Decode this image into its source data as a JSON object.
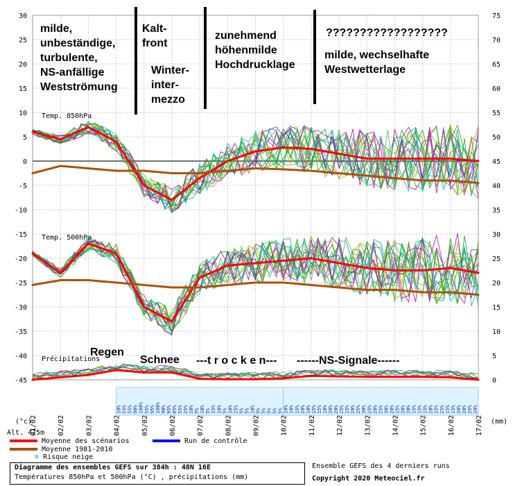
{
  "chart_data": {
    "type": "line",
    "x_tick_labels": [
      "01/02",
      "02/02",
      "03/02",
      "04/02",
      "05/02",
      "06/02",
      "07/02",
      "08/02",
      "09/02",
      "10/02",
      "11/02",
      "12/02",
      "13/02",
      "14/02",
      "15/02",
      "16/02",
      "17/02"
    ],
    "left_axis_ticks": [
      30,
      25,
      20,
      15,
      10,
      5,
      0,
      -5,
      -10,
      -15,
      -20,
      -25,
      -30,
      -35,
      -40,
      -45
    ],
    "right_axis_ticks": [
      75,
      70,
      65,
      60,
      55,
      50,
      45,
      40,
      35,
      30,
      25,
      20,
      15,
      10,
      5,
      0
    ],
    "left_unit": "(°c)",
    "right_unit": "(mm)",
    "altitude": "Alt. 475m",
    "panel_labels": {
      "t850": "Temp. 850hPa",
      "t500": "Temp. 500hPa",
      "precip": "Précipitations"
    },
    "series": [
      {
        "name": "Moyenne des scénarios",
        "panel": "t850",
        "color": "#ff0000",
        "x": [
          "01/02",
          "02/02",
          "03/02",
          "04/02",
          "05/02",
          "06/02",
          "07/02",
          "08/02",
          "09/02",
          "10/02",
          "11/02",
          "12/02",
          "13/02",
          "14/02",
          "15/02",
          "16/02",
          "17/02"
        ],
        "values": [
          6,
          4.5,
          7,
          4,
          -5,
          -8,
          -3.5,
          0,
          2,
          2.8,
          2.5,
          1.5,
          0.5,
          0.5,
          0.5,
          0.5,
          0
        ]
      },
      {
        "name": "Moyenne 1981-2010",
        "panel": "t850",
        "color": "#b05000",
        "x": [
          "01/02",
          "02/02",
          "03/02",
          "04/02",
          "05/02",
          "06/02",
          "07/02",
          "08/02",
          "09/02",
          "10/02",
          "11/02",
          "12/02",
          "13/02",
          "14/02",
          "15/02",
          "16/02",
          "17/02"
        ],
        "values": [
          -2.5,
          -1,
          -1.5,
          -2,
          -2,
          -2.5,
          -2.5,
          -2,
          -1.5,
          -1.7,
          -2,
          -2.5,
          -3,
          -3.5,
          -4,
          -4,
          -4.5
        ]
      },
      {
        "name": "Moyenne des scénarios",
        "panel": "t500",
        "color": "#ff0000",
        "x": [
          "01/02",
          "02/02",
          "03/02",
          "04/02",
          "05/02",
          "06/02",
          "07/02",
          "08/02",
          "09/02",
          "10/02",
          "11/02",
          "12/02",
          "13/02",
          "14/02",
          "15/02",
          "16/02",
          "17/02"
        ],
        "values": [
          -19,
          -23,
          -17,
          -19,
          -30,
          -33,
          -24,
          -21.5,
          -21,
          -20.5,
          -20,
          -21,
          -22,
          -22.5,
          -22.5,
          -22,
          -23
        ]
      },
      {
        "name": "Moyenne 1981-2010",
        "panel": "t500",
        "color": "#b05000",
        "x": [
          "01/02",
          "02/02",
          "03/02",
          "04/02",
          "05/02",
          "06/02",
          "07/02",
          "08/02",
          "09/02",
          "10/02",
          "11/02",
          "12/02",
          "13/02",
          "14/02",
          "15/02",
          "16/02",
          "17/02"
        ],
        "values": [
          -25.5,
          -24.5,
          -24.5,
          -25,
          -25.5,
          -26,
          -26,
          -25.5,
          -25,
          -25,
          -25.5,
          -26,
          -26.5,
          -26.5,
          -27,
          -27,
          -27.5
        ]
      },
      {
        "name": "Moyenne des scénarios",
        "panel": "precip",
        "color": "#ff0000",
        "x": [
          "01/02",
          "02/02",
          "03/02",
          "04/02",
          "05/02",
          "06/02",
          "07/02",
          "08/02",
          "09/02",
          "10/02",
          "11/02",
          "12/02",
          "13/02",
          "14/02",
          "15/02",
          "16/02",
          "17/02"
        ],
        "values": [
          0,
          0.5,
          1,
          2,
          1.5,
          1.5,
          0.2,
          0.1,
          0.1,
          0.3,
          0.8,
          0.7,
          0.6,
          0.6,
          0.6,
          0.5,
          0
        ]
      }
    ],
    "snow_risk": {
      "blocks": [
        {
          "from": "04/02",
          "to": "10/02",
          "values": [
            "10%",
            "55%",
            "55%",
            "90%",
            "100%",
            "55%",
            "95%",
            "100%",
            "90%",
            "95%",
            "85%",
            "55%",
            "25%",
            "10%",
            "5%",
            "10%",
            "5%",
            "15%",
            "10%",
            "5%",
            "10%",
            "25%",
            "5%",
            "5%",
            "10%",
            "5%",
            "5%",
            "5%",
            "5%",
            "5%"
          ]
        },
        {
          "from": "10/02",
          "to": "17/02",
          "values": [
            "10%",
            "10%",
            "15%",
            "20%",
            "10%",
            "15%",
            "15%",
            "10%",
            "20%",
            "20%",
            "25%",
            "15%",
            "20%",
            "25%",
            "30%",
            "25%",
            "20%",
            "25%",
            "30%",
            "20%",
            "15%",
            "20%",
            "20%",
            "15%",
            "15%",
            "15%",
            "20%",
            "15%",
            "25%",
            "15%",
            "15%",
            "20%",
            "20%",
            "25%",
            "20%"
          ]
        }
      ]
    },
    "annotations": [
      "milde,\nunbeständige,\nturbulente,\nNS-anfällige\nWestströmung",
      "Kalt-\nfront",
      "Winter-\ninter-\nmezzo",
      "zunehmend\nhöhenmilde\nHochdrucklage",
      "??????????????????",
      "milde, wechselhafte\nWestwetterlage",
      "Regen",
      "Schnee",
      "---t r o c k e n---",
      "------NS-Signale------"
    ]
  },
  "legend": {
    "mean": "Moyenne des scénarios",
    "control": "Run de contrôle",
    "normal": "Moyenne 1981-2010",
    "snow": "Risque neige"
  },
  "footer": {
    "line1": "Diagramme des ensembles GEFS sur 384h : 48N 16E",
    "line2": "Températures 850hPa et 500hPa (°C) , précipitations (mm)",
    "right1": "Ensemble GEFS des 4 derniers runs",
    "right2": "Copyright 2020 Meteociel.fr"
  },
  "colors": {
    "mean": "#ff0000",
    "control": "#0000ff",
    "normal": "#b05000",
    "members": [
      "#00aa00",
      "#00aaaa",
      "#aa00aa",
      "#aaaa00",
      "#55aa55"
    ]
  }
}
